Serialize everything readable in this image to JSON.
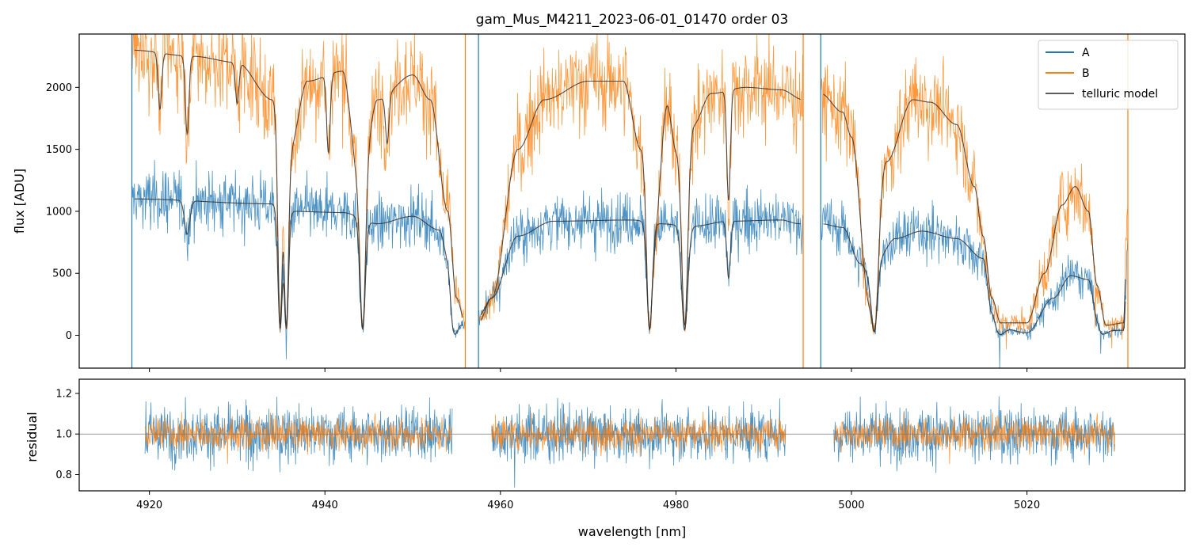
{
  "title": "gam_Mus_M4211_2023-06-01_01470  order 03",
  "colors": {
    "A": "#1f77b4",
    "B": "#ff7f0e",
    "model": "#333333"
  },
  "chart_data": [
    {
      "type": "line",
      "panel": "top",
      "title": "gam_Mus_M4211_2023-06-01_01470  order 03",
      "xlabel": "",
      "ylabel": "flux [ADU]",
      "xlim": [
        4912,
        5038
      ],
      "ylim": [
        -265,
        2430
      ],
      "yticks": [
        0,
        500,
        1000,
        1500,
        2000
      ],
      "ytick_labels": [
        "0",
        "500",
        "1000",
        "1500",
        "2000"
      ],
      "xticks": [
        4920,
        4940,
        4960,
        4980,
        5000,
        5020
      ],
      "xtick_labels_shown": false,
      "legend": {
        "placement": "top-right",
        "entries": [
          "A",
          "B",
          "telluric model"
        ]
      },
      "segments": [
        [
          4918.0,
          4956.0
        ],
        [
          4957.5,
          4994.5
        ],
        [
          4996.5,
          5031.5
        ]
      ],
      "series": [
        {
          "name": "A",
          "continuum_nodes": [
            [
              4918,
              1100
            ],
            [
              4934,
              1060
            ],
            [
              4936,
              1000
            ],
            [
              4942,
              990
            ],
            [
              4946,
              900
            ],
            [
              4950,
              960
            ],
            [
              4953,
              850
            ],
            [
              4954,
              650
            ],
            [
              4955,
              120
            ],
            [
              4956,
              80
            ],
            [
              4957.5,
              150
            ],
            [
              4959,
              300
            ],
            [
              4962,
              800
            ],
            [
              4966,
              920
            ],
            [
              4975,
              930
            ],
            [
              4978,
              900
            ],
            [
              4982,
              880
            ],
            [
              4986,
              920
            ],
            [
              4992,
              930
            ],
            [
              4994,
              900
            ],
            [
              4996.5,
              900
            ],
            [
              4999,
              870
            ],
            [
              5001,
              580
            ],
            [
              5002,
              500
            ],
            [
              5003,
              620
            ],
            [
              5005,
              780
            ],
            [
              5008,
              840
            ],
            [
              5012,
              780
            ],
            [
              5015,
              620
            ],
            [
              5016,
              200
            ],
            [
              5017,
              60
            ],
            [
              5020,
              20
            ],
            [
              5023,
              300
            ],
            [
              5025,
              480
            ],
            [
              5027,
              450
            ],
            [
              5028,
              200
            ],
            [
              5029,
              40
            ],
            [
              5031,
              40
            ],
            [
              5031.5,
              700
            ]
          ],
          "noise_level": 115,
          "absorption_lines": [
            [
              4924.3,
              0.25,
              0.3
            ],
            [
              4934.9,
              0.95,
              0.25
            ],
            [
              4935.6,
              0.95,
              0.25
            ],
            [
              4944.3,
              0.95,
              0.3
            ],
            [
              4954.8,
              0.95,
              0.4
            ],
            [
              4977.0,
              0.95,
              0.3
            ],
            [
              4981.0,
              0.95,
              0.35
            ],
            [
              4986.0,
              0.5,
              0.2
            ],
            [
              5002.6,
              0.95,
              0.35
            ],
            [
              5017.0,
              0.9,
              0.5
            ],
            [
              5028.6,
              0.9,
              0.5
            ]
          ]
        },
        {
          "name": "B",
          "continuum_nodes": [
            [
              4918,
              2300
            ],
            [
              4925,
              2250
            ],
            [
              4930,
              2200
            ],
            [
              4934,
              1900
            ],
            [
              4936,
              1500
            ],
            [
              4938,
              2050
            ],
            [
              4942,
              2130
            ],
            [
              4944,
              1200
            ],
            [
              4946,
              1900
            ],
            [
              4950,
              2100
            ],
            [
              4952,
              1900
            ],
            [
              4954,
              1000
            ],
            [
              4955,
              300
            ],
            [
              4956,
              100
            ],
            [
              4957.5,
              100
            ],
            [
              4959,
              300
            ],
            [
              4962,
              1500
            ],
            [
              4965,
              1900
            ],
            [
              4970,
              2050
            ],
            [
              4974,
              2050
            ],
            [
              4976,
              1500
            ],
            [
              4977.5,
              800
            ],
            [
              4979,
              1850
            ],
            [
              4980,
              1500
            ],
            [
              4982,
              1700
            ],
            [
              4984,
              1950
            ],
            [
              4988,
              2000
            ],
            [
              4992,
              1980
            ],
            [
              4994.5,
              1900
            ],
            [
              4996.5,
              1950
            ],
            [
              4999,
              1800
            ],
            [
              5000,
              1600
            ],
            [
              5002,
              300
            ],
            [
              5004,
              1400
            ],
            [
              5007,
              1900
            ],
            [
              5009,
              1880
            ],
            [
              5012,
              1700
            ],
            [
              5014,
              1200
            ],
            [
              5015,
              800
            ],
            [
              5016,
              300
            ],
            [
              5017,
              100
            ],
            [
              5020,
              100
            ],
            [
              5022,
              500
            ],
            [
              5024,
              1050
            ],
            [
              5025.5,
              1200
            ],
            [
              5027,
              1000
            ],
            [
              5028,
              400
            ],
            [
              5029,
              80
            ],
            [
              5031,
              100
            ],
            [
              5031.5,
              1100
            ]
          ],
          "noise_level": 135,
          "absorption_lines": [
            [
              4921.2,
              0.2,
              0.2
            ],
            [
              4924.3,
              0.28,
              0.2
            ],
            [
              4930.0,
              0.15,
              0.2
            ],
            [
              4934.9,
              0.95,
              0.25
            ],
            [
              4935.6,
              0.95,
              0.25
            ],
            [
              4940.4,
              0.3,
              0.2
            ],
            [
              4944.3,
              0.95,
              0.3
            ],
            [
              4947.1,
              0.2,
              0.2
            ],
            [
              4977.0,
              0.95,
              0.3
            ],
            [
              4981.0,
              0.95,
              0.35
            ],
            [
              4986.0,
              0.45,
              0.2
            ],
            [
              5002.6,
              0.95,
              0.35
            ]
          ]
        },
        {
          "name": "telluric model A",
          "legend_name": "telluric model",
          "style": "model",
          "base": "A"
        },
        {
          "name": "telluric model B",
          "legend_name": "telluric model",
          "style": "model",
          "base": "B"
        }
      ]
    },
    {
      "type": "line",
      "panel": "bottom",
      "xlabel": "wavelength [nm]",
      "ylabel": "residual",
      "xlim": [
        4912,
        5038
      ],
      "ylim": [
        0.72,
        1.27
      ],
      "yticks": [
        0.8,
        1.0,
        1.2
      ],
      "ytick_labels": [
        "0.8",
        "1.0",
        "1.2"
      ],
      "xticks": [
        4920,
        4940,
        4960,
        4980,
        5000,
        5020
      ],
      "xtick_labels": [
        "4920",
        "4940",
        "4960",
        "4980",
        "5000",
        "5020"
      ],
      "reference_line": 1.0,
      "segments": [
        [
          4919.5,
          4954.5
        ],
        [
          4959.0,
          4992.5
        ],
        [
          4998.0,
          5030.0
        ]
      ],
      "series": [
        {
          "name": "A",
          "center": 1.0,
          "noise_level": 0.075
        },
        {
          "name": "B",
          "center": 1.0,
          "noise_level": 0.04
        }
      ]
    }
  ]
}
